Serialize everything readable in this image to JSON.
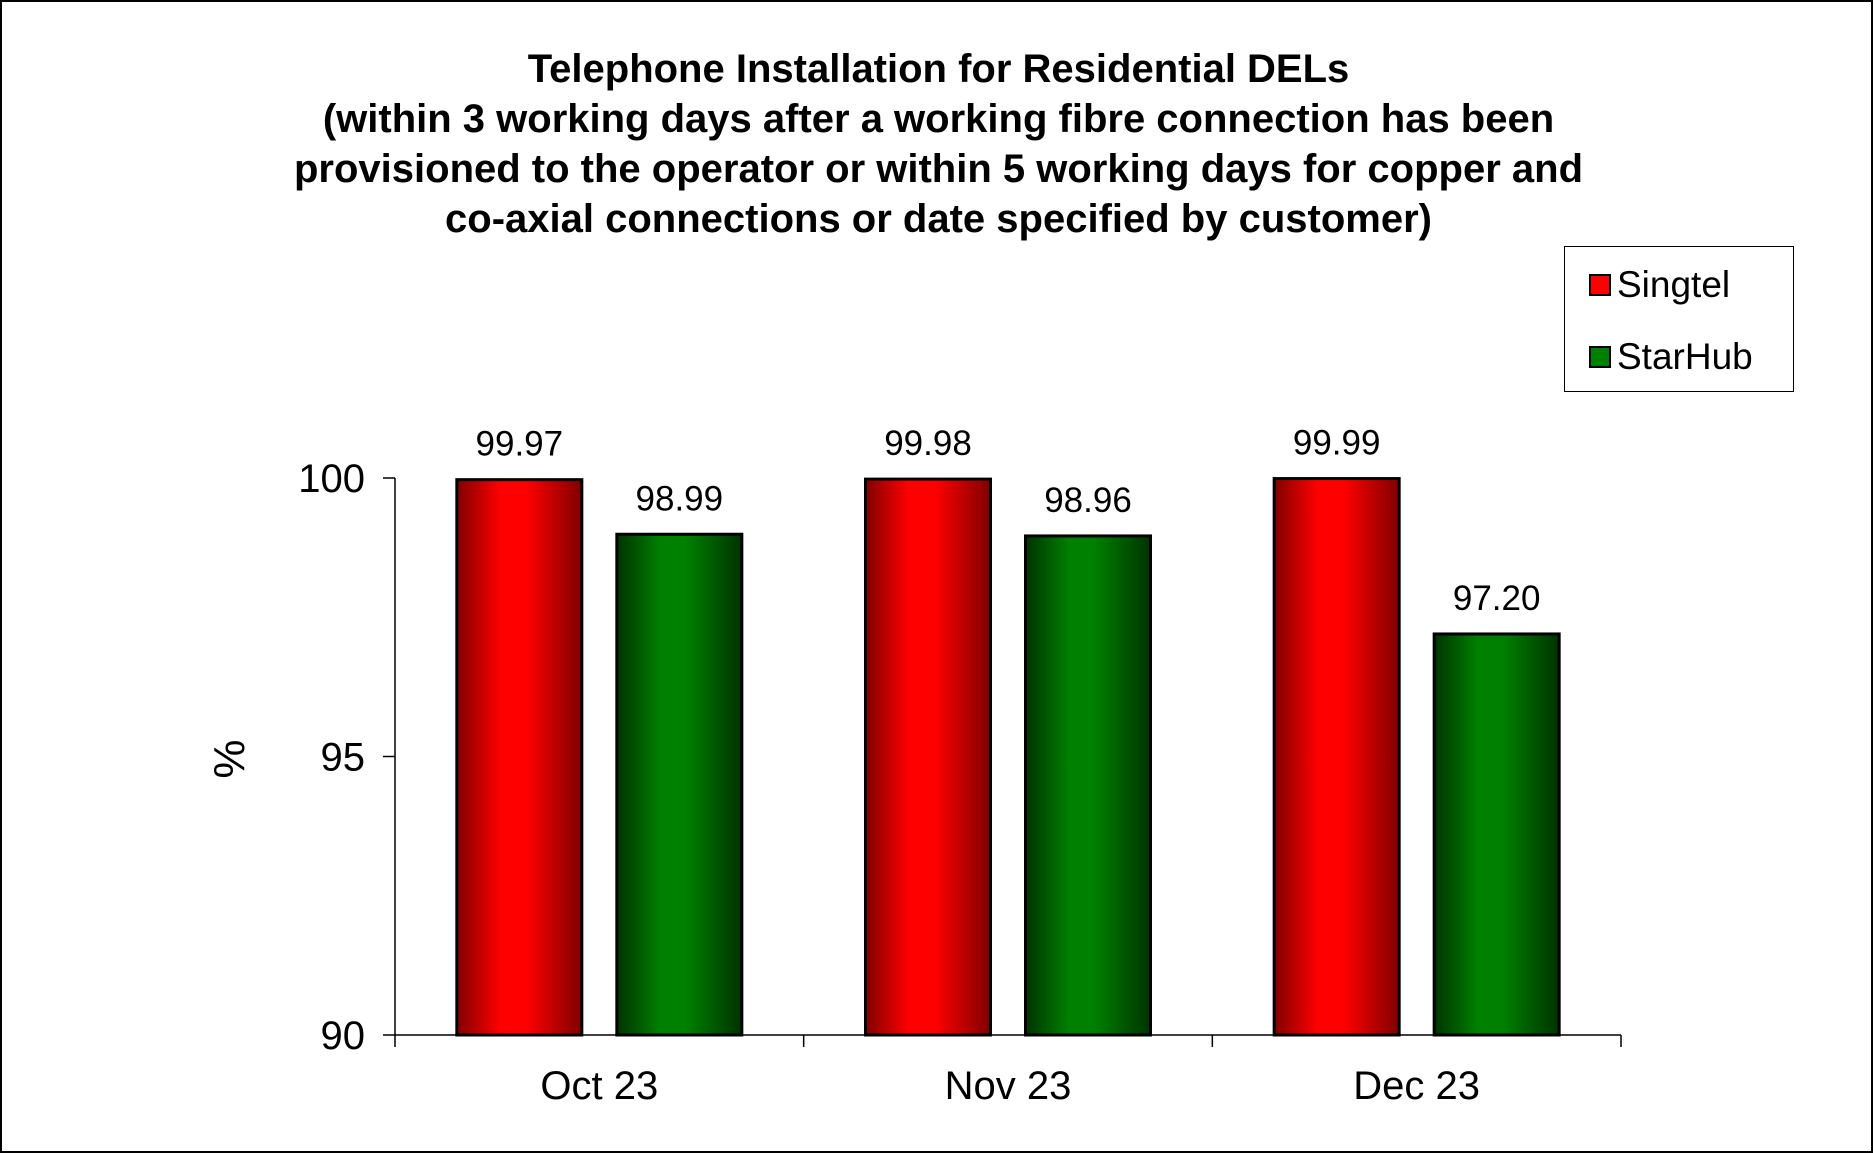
{
  "chart_data": {
    "type": "bar",
    "title_lines": [
      "Telephone Installation for Residential DELs",
      "(within 3 working days after a working fibre connection has been",
      "provisioned to the operator or within 5 working days for copper and",
      "co-axial connections or date specified by customer)"
    ],
    "xlabel": "",
    "ylabel": "%",
    "ylim": [
      90,
      100
    ],
    "yticks": [
      90,
      95,
      100
    ],
    "categories": [
      "Oct 23",
      "Nov 23",
      "Dec 23"
    ],
    "series": [
      {
        "name": "Singtel",
        "color": "#ff0000",
        "color_dark": "#800000",
        "values": [
          99.97,
          99.98,
          99.99
        ],
        "labels": [
          "99.97",
          "99.98",
          "99.99"
        ]
      },
      {
        "name": "StarHub",
        "color": "#008000",
        "color_dark": "#003300",
        "values": [
          98.99,
          98.96,
          97.2
        ],
        "labels": [
          "98.99",
          "98.96",
          "97.20"
        ]
      }
    ],
    "legend_position": "top-right",
    "grid": false
  }
}
